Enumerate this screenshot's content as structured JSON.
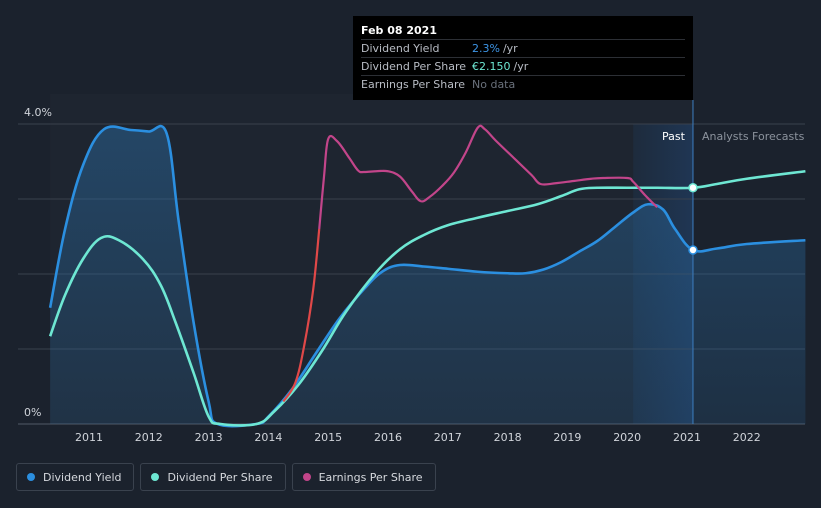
{
  "chart_data": {
    "type": "line",
    "title": "",
    "xlabel": "",
    "ylabel": "",
    "x_ticks": [
      "2011",
      "2012",
      "2013",
      "2014",
      "2015",
      "2016",
      "2017",
      "2018",
      "2019",
      "2020",
      "2021",
      "2022"
    ],
    "y_ticks": [
      "4.0%",
      "0%"
    ],
    "ylim": [
      0,
      4.0
    ],
    "xlim": [
      2010.35,
      2022.98
    ],
    "past_label": "Past",
    "forecast_label": "Analysts Forecasts",
    "cursor_x": 2021.1,
    "series": [
      {
        "name": "Dividend Yield",
        "color": "#2b8fe0",
        "filled": true,
        "points": [
          [
            2010.35,
            1.55
          ],
          [
            2010.6,
            2.6
          ],
          [
            2010.9,
            3.45
          ],
          [
            2011.25,
            3.93
          ],
          [
            2011.7,
            3.92
          ],
          [
            2012.0,
            3.9
          ],
          [
            2012.3,
            3.87
          ],
          [
            2012.5,
            2.7
          ],
          [
            2012.75,
            1.35
          ],
          [
            2013.0,
            0.3
          ],
          [
            2013.15,
            0.0
          ],
          [
            2013.8,
            0.0
          ],
          [
            2014.0,
            0.1
          ],
          [
            2014.4,
            0.47
          ],
          [
            2014.8,
            0.95
          ],
          [
            2015.2,
            1.42
          ],
          [
            2015.6,
            1.8
          ],
          [
            2015.9,
            2.03
          ],
          [
            2016.2,
            2.12
          ],
          [
            2016.6,
            2.1
          ],
          [
            2017.0,
            2.07
          ],
          [
            2017.5,
            2.03
          ],
          [
            2018.0,
            2.01
          ],
          [
            2018.3,
            2.01
          ],
          [
            2018.6,
            2.06
          ],
          [
            2018.9,
            2.16
          ],
          [
            2019.2,
            2.3
          ],
          [
            2019.5,
            2.44
          ],
          [
            2019.8,
            2.63
          ],
          [
            2020.1,
            2.82
          ],
          [
            2020.35,
            2.93
          ],
          [
            2020.6,
            2.86
          ],
          [
            2020.8,
            2.6
          ],
          [
            2021.1,
            2.32
          ],
          [
            2021.5,
            2.34
          ],
          [
            2022.0,
            2.4
          ],
          [
            2022.98,
            2.45
          ]
        ]
      },
      {
        "name": "Dividend Per Share",
        "color": "#6ee7d3",
        "filled": false,
        "points": [
          [
            2010.35,
            1.17
          ],
          [
            2010.6,
            1.72
          ],
          [
            2010.9,
            2.2
          ],
          [
            2011.2,
            2.48
          ],
          [
            2011.5,
            2.45
          ],
          [
            2011.9,
            2.2
          ],
          [
            2012.2,
            1.85
          ],
          [
            2012.45,
            1.35
          ],
          [
            2012.75,
            0.68
          ],
          [
            2013.0,
            0.1
          ],
          [
            2013.2,
            0.0
          ],
          [
            2013.8,
            0.0
          ],
          [
            2014.1,
            0.17
          ],
          [
            2014.5,
            0.52
          ],
          [
            2014.9,
            0.98
          ],
          [
            2015.3,
            1.5
          ],
          [
            2015.8,
            2.02
          ],
          [
            2016.2,
            2.33
          ],
          [
            2016.6,
            2.52
          ],
          [
            2017.0,
            2.65
          ],
          [
            2017.5,
            2.75
          ],
          [
            2018.0,
            2.84
          ],
          [
            2018.5,
            2.93
          ],
          [
            2018.9,
            3.04
          ],
          [
            2019.2,
            3.13
          ],
          [
            2019.5,
            3.15
          ],
          [
            2020.0,
            3.15
          ],
          [
            2020.5,
            3.15
          ],
          [
            2021.1,
            3.15
          ],
          [
            2021.5,
            3.2
          ],
          [
            2022.0,
            3.27
          ],
          [
            2022.98,
            3.37
          ]
        ]
      },
      {
        "name": "Earnings Per Share",
        "color": "#c2458a",
        "filled": false,
        "negative_color": "#e04848",
        "negative_until": 2014.85,
        "points": [
          [
            2014.25,
            0.3
          ],
          [
            2014.45,
            0.55
          ],
          [
            2014.6,
            1.05
          ],
          [
            2014.75,
            1.8
          ],
          [
            2014.85,
            2.6
          ],
          [
            2014.93,
            3.3
          ],
          [
            2015.0,
            3.8
          ],
          [
            2015.15,
            3.77
          ],
          [
            2015.35,
            3.55
          ],
          [
            2015.5,
            3.38
          ],
          [
            2015.6,
            3.36
          ],
          [
            2015.8,
            3.37
          ],
          [
            2016.0,
            3.37
          ],
          [
            2016.2,
            3.3
          ],
          [
            2016.4,
            3.1
          ],
          [
            2016.55,
            2.97
          ],
          [
            2016.7,
            3.03
          ],
          [
            2016.9,
            3.17
          ],
          [
            2017.1,
            3.35
          ],
          [
            2017.3,
            3.62
          ],
          [
            2017.5,
            3.95
          ],
          [
            2017.62,
            3.93
          ],
          [
            2017.8,
            3.78
          ],
          [
            2018.1,
            3.55
          ],
          [
            2018.4,
            3.32
          ],
          [
            2018.55,
            3.2
          ],
          [
            2018.8,
            3.21
          ],
          [
            2019.1,
            3.24
          ],
          [
            2019.4,
            3.27
          ],
          [
            2019.6,
            3.28
          ],
          [
            2020.0,
            3.28
          ],
          [
            2020.1,
            3.23
          ],
          [
            2020.3,
            3.05
          ],
          [
            2020.5,
            2.89
          ]
        ]
      }
    ]
  },
  "tooltip": {
    "date": "Feb 08 2021",
    "rows": [
      {
        "label": "Dividend Yield",
        "value": "2.3%",
        "unit": "/yr",
        "color": "#3d95e6"
      },
      {
        "label": "Dividend Per Share",
        "value": "€2.150",
        "unit": "/yr",
        "color": "#6ee7d3"
      },
      {
        "label": "Earnings Per Share",
        "value": "No data",
        "unit": "",
        "color": "#6a717c"
      }
    ]
  },
  "legend": [
    {
      "label": "Dividend Yield",
      "color": "#2b8fe0"
    },
    {
      "label": "Dividend Per Share",
      "color": "#6ee7d3"
    },
    {
      "label": "Earnings Per Share",
      "color": "#c2458a"
    }
  ]
}
